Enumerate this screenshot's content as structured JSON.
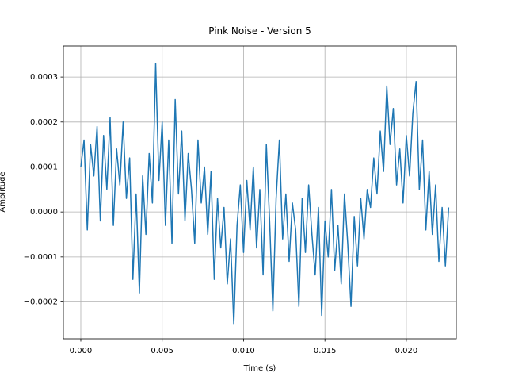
{
  "chart_data": {
    "type": "line",
    "title": "Pink Noise - Version 5",
    "x_label": "Time (s)",
    "y_label": "Amplitude",
    "x": [
      0,
      0.0002,
      0.0004,
      0.0006,
      0.0008,
      0.001,
      0.0012,
      0.0014,
      0.0016,
      0.0018,
      0.002,
      0.0022,
      0.0024,
      0.0026,
      0.0028,
      0.003,
      0.0032,
      0.0034,
      0.0036,
      0.0038,
      0.004,
      0.0042,
      0.0044,
      0.0046,
      0.0048,
      0.005,
      0.0052,
      0.0054,
      0.0056,
      0.0058,
      0.006,
      0.0062,
      0.0064,
      0.0066,
      0.0068,
      0.007,
      0.0072,
      0.0074,
      0.0076,
      0.0078,
      0.008,
      0.0082,
      0.0084,
      0.0086,
      0.0088,
      0.009,
      0.0092,
      0.0094,
      0.0096,
      0.0098,
      0.01,
      0.0102,
      0.0104,
      0.0106,
      0.0108,
      0.011,
      0.0112,
      0.0114,
      0.0116,
      0.0118,
      0.012,
      0.0122,
      0.0124,
      0.0126,
      0.0128,
      0.013,
      0.0132,
      0.0134,
      0.0136,
      0.0138,
      0.014,
      0.0142,
      0.0144,
      0.0146,
      0.0148,
      0.015,
      0.0152,
      0.0154,
      0.0156,
      0.0158,
      0.016,
      0.0162,
      0.0164,
      0.0166,
      0.0168,
      0.017,
      0.0172,
      0.0174,
      0.0176,
      0.0178,
      0.018,
      0.0182,
      0.0184,
      0.0186,
      0.0188,
      0.019,
      0.0192,
      0.0194,
      0.0196,
      0.0198,
      0.02,
      0.0202,
      0.0204,
      0.0206,
      0.0208,
      0.021,
      0.0212,
      0.0214,
      0.0216,
      0.0218,
      0.022,
      0.0222,
      0.0224,
      0.0226
    ],
    "series": [
      {
        "color": "#1f77b4",
        "values": [
          0.0001,
          0.00016,
          -4e-05,
          0.00015,
          8e-05,
          0.00019,
          -2e-05,
          0.00017,
          5e-05,
          0.00021,
          -3e-05,
          0.00014,
          6e-05,
          0.0002,
          3e-05,
          0.00012,
          -0.00015,
          4e-05,
          -0.00018,
          8e-05,
          -5e-05,
          0.00013,
          2e-05,
          0.00033,
          7e-05,
          0.0002,
          -3e-05,
          0.00016,
          -7e-05,
          0.00025,
          4e-05,
          0.00018,
          -2e-05,
          0.00013,
          5e-05,
          -7e-05,
          0.00016,
          2e-05,
          0.0001,
          -5e-05,
          9e-05,
          -0.00015,
          3e-05,
          -8e-05,
          1e-05,
          -0.00016,
          -6e-05,
          -0.00025,
          -3e-05,
          6e-05,
          -9e-05,
          7e-05,
          -4e-05,
          0.0001,
          -8e-05,
          5e-05,
          -0.00014,
          0.00015,
          -2e-05,
          -0.00022,
          3e-05,
          0.00016,
          -6e-05,
          4e-05,
          -0.00011,
          2e-05,
          -4e-05,
          -0.00021,
          3e-05,
          -9e-05,
          6e-05,
          -5e-05,
          -0.00014,
          1e-05,
          -0.00023,
          -2e-05,
          -0.0001,
          5e-05,
          -0.00013,
          -3e-05,
          -0.00016,
          4e-05,
          -7e-05,
          -0.00021,
          -1e-05,
          -0.00012,
          3e-05,
          -6e-05,
          5e-05,
          1e-05,
          0.00012,
          4e-05,
          0.00018,
          9e-05,
          0.00028,
          0.00015,
          0.00023,
          6e-05,
          0.00014,
          2e-05,
          0.00017,
          8e-05,
          0.00022,
          0.00029,
          5e-05,
          0.00016,
          -4e-05,
          9e-05,
          -5e-05,
          6e-05,
          -0.00011,
          1e-05,
          -0.00012,
          1e-05
        ]
      }
    ],
    "xlim": [
      -0.00107,
      0.02307
    ],
    "ylim": [
      -0.000282,
      0.000369
    ],
    "xticks": [
      {
        "value": 0,
        "label": "0.000"
      },
      {
        "value": 0.005,
        "label": "0.005"
      },
      {
        "value": 0.01,
        "label": "0.010"
      },
      {
        "value": 0.015,
        "label": "0.015"
      },
      {
        "value": 0.02,
        "label": "0.020"
      }
    ],
    "yticks": [
      {
        "value": -0.0002,
        "label": "−0.0002"
      },
      {
        "value": -0.0001,
        "label": "−0.0001"
      },
      {
        "value": 0,
        "label": "0.0000"
      },
      {
        "value": 0.0001,
        "label": "0.0001"
      },
      {
        "value": 0.0002,
        "label": "0.0002"
      },
      {
        "value": 0.0003,
        "label": "0.0003"
      }
    ],
    "grid": true
  }
}
